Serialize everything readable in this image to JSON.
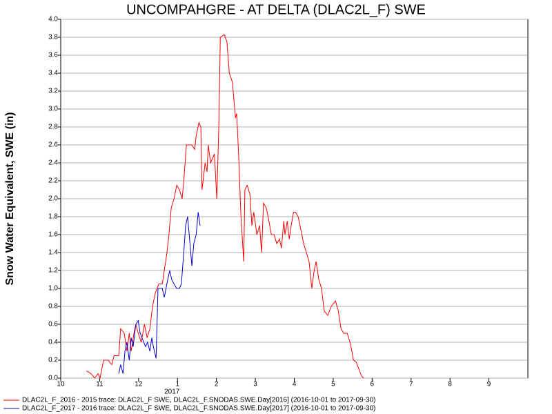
{
  "chart_data": {
    "type": "line",
    "title": "UNCOMPAHGRE - AT DELTA (DLAC2L_F) SWE",
    "y_label": "Snow Water Equivalent, SWE (in)",
    "x_annotation": "2017",
    "xlim": [
      0,
      12
    ],
    "ylim": [
      0,
      4
    ],
    "xticks": [
      {
        "value": 0,
        "label": "10"
      },
      {
        "value": 1,
        "label": "11"
      },
      {
        "value": 2,
        "label": "12"
      },
      {
        "value": 3,
        "label": "1"
      },
      {
        "value": 4,
        "label": "2"
      },
      {
        "value": 5,
        "label": "3"
      },
      {
        "value": 6,
        "label": "4"
      },
      {
        "value": 7,
        "label": "5"
      },
      {
        "value": 8,
        "label": "6"
      },
      {
        "value": 9,
        "label": "7"
      },
      {
        "value": 10,
        "label": "8"
      },
      {
        "value": 11,
        "label": "9"
      }
    ],
    "yticks": [
      {
        "value": 0,
        "label": "0.0"
      },
      {
        "value": 0.2,
        "label": "0.2"
      },
      {
        "value": 0.4,
        "label": "0.4"
      },
      {
        "value": 0.6,
        "label": "0.6"
      },
      {
        "value": 0.8,
        "label": "0.8"
      },
      {
        "value": 1,
        "label": "1.0"
      },
      {
        "value": 1.2,
        "label": "1.2"
      },
      {
        "value": 1.4,
        "label": "1.4"
      },
      {
        "value": 1.6,
        "label": "1.6"
      },
      {
        "value": 1.8,
        "label": "1.8"
      },
      {
        "value": 2,
        "label": "2.0"
      },
      {
        "value": 2.2,
        "label": "2.2"
      },
      {
        "value": 2.4,
        "label": "2.4"
      },
      {
        "value": 2.6,
        "label": "2.6"
      },
      {
        "value": 2.8,
        "label": "2.8"
      },
      {
        "value": 3,
        "label": "3.0"
      },
      {
        "value": 3.2,
        "label": "3.2"
      },
      {
        "value": 3.4,
        "label": "3.4"
      },
      {
        "value": 3.6,
        "label": "3.6"
      },
      {
        "value": 3.8,
        "label": "3.8"
      },
      {
        "value": 4,
        "label": "4.0"
      }
    ],
    "grid": true,
    "legend": "bottom",
    "series": [
      {
        "name": "DLAC2L_F_2016 - 2015 trace: DLAC2L_F SWE, DLAC2L_F.SNODAS.SWE.Day[2016] (2016-10-01 to 2017-09-30)",
        "color": "#ff0000",
        "x": [
          0.66,
          0.78,
          0.87,
          0.96,
          1.01,
          1.1,
          1.22,
          1.31,
          1.37,
          1.49,
          1.54,
          1.63,
          1.7,
          1.76,
          1.81,
          1.88,
          1.93,
          1.99,
          2.07,
          2.15,
          2.22,
          2.29,
          2.36,
          2.43,
          2.52,
          2.61,
          2.66,
          2.73,
          2.78,
          2.84,
          2.91,
          2.98,
          3.05,
          3.12,
          3.16,
          3.23,
          3.37,
          3.44,
          3.48,
          3.55,
          3.6,
          3.63,
          3.71,
          3.76,
          3.79,
          3.85,
          3.95,
          4.01,
          4.06,
          4.1,
          4.2,
          4.27,
          4.33,
          4.41,
          4.49,
          4.52,
          4.57,
          4.63,
          4.7,
          4.73,
          4.79,
          4.86,
          4.91,
          4.96,
          5.04,
          5.11,
          5.16,
          5.21,
          5.28,
          5.35,
          5.41,
          5.48,
          5.55,
          5.62,
          5.67,
          5.73,
          5.76,
          5.82,
          5.87,
          5.92,
          5.98,
          6.03,
          6.1,
          6.17,
          6.24,
          6.31,
          6.38,
          6.45,
          6.51,
          6.56,
          6.63,
          6.7,
          6.77,
          6.86,
          6.95,
          7.06,
          7.13,
          7.2,
          7.27,
          7.36,
          7.43,
          7.48,
          7.52,
          7.59,
          7.66,
          7.73,
          7.78
        ],
        "values": [
          0.08,
          0.05,
          0.0,
          0.05,
          0.0,
          0.2,
          0.2,
          0.15,
          0.25,
          0.25,
          0.55,
          0.5,
          0.3,
          0.5,
          0.3,
          0.5,
          0.6,
          0.5,
          0.4,
          0.6,
          0.45,
          0.55,
          0.8,
          0.95,
          1.05,
          1.05,
          1.2,
          1.4,
          1.6,
          1.9,
          2.0,
          2.15,
          2.1,
          2.0,
          2.2,
          2.6,
          2.6,
          2.55,
          2.7,
          2.85,
          2.8,
          2.1,
          2.4,
          2.3,
          2.6,
          2.4,
          2.5,
          2.0,
          2.8,
          3.8,
          3.83,
          3.75,
          3.4,
          3.3,
          2.9,
          2.95,
          2.5,
          1.8,
          1.3,
          2.1,
          2.15,
          2.05,
          1.7,
          1.85,
          1.6,
          1.7,
          1.4,
          1.95,
          1.9,
          1.75,
          1.6,
          1.6,
          1.5,
          1.55,
          1.45,
          1.75,
          1.6,
          1.75,
          1.55,
          1.7,
          1.85,
          1.85,
          1.8,
          1.65,
          1.5,
          1.4,
          1.3,
          1.0,
          1.2,
          1.3,
          1.1,
          1.0,
          0.75,
          0.7,
          0.8,
          0.86,
          0.75,
          0.55,
          0.5,
          0.5,
          0.4,
          0.3,
          0.2,
          0.18,
          0.1,
          0.02,
          0.0
        ]
      },
      {
        "name": "DLAC2L_F_2017 - 2016 trace: DLAC2L_F SWE, DLAC2L_F.SNODAS.SWE.Day[2017] (2016-10-01 to 2017-09-30)",
        "color": "#0000cc",
        "x": [
          1.49,
          1.54,
          1.6,
          1.65,
          1.7,
          1.76,
          1.81,
          1.86,
          1.93,
          1.99,
          2.04,
          2.09,
          2.13,
          2.18,
          2.23,
          2.29,
          2.34,
          2.38,
          2.45,
          2.5,
          2.61,
          2.66,
          2.75,
          2.8,
          2.85,
          2.91,
          2.98,
          3.05,
          3.1,
          3.16,
          3.21,
          3.26,
          3.32,
          3.37,
          3.42,
          3.48,
          3.53,
          3.58
        ],
        "values": [
          0.05,
          0.15,
          0.05,
          0.3,
          0.4,
          0.2,
          0.45,
          0.35,
          0.6,
          0.64,
          0.5,
          0.45,
          0.4,
          0.35,
          0.4,
          0.3,
          0.45,
          0.35,
          0.22,
          1.0,
          1.0,
          0.9,
          1.1,
          1.2,
          1.1,
          1.05,
          1.0,
          1.0,
          1.05,
          1.4,
          1.7,
          1.8,
          1.5,
          1.25,
          1.5,
          1.6,
          1.85,
          1.7
        ]
      }
    ]
  }
}
